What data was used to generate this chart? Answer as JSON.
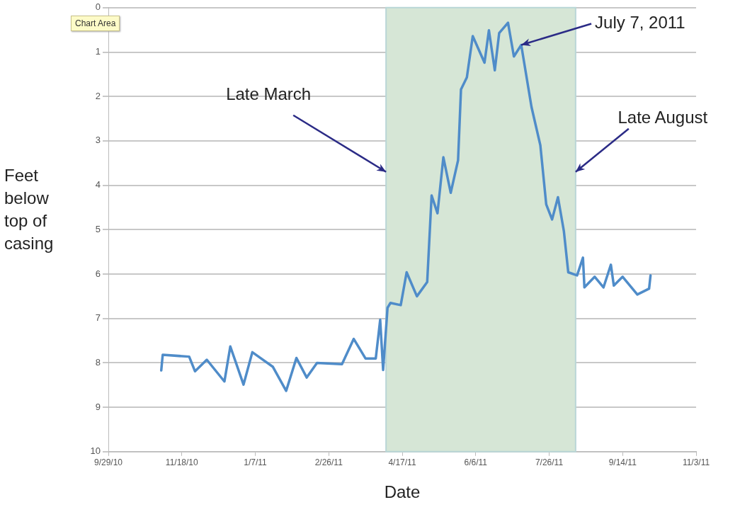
{
  "chart_data": {
    "type": "line",
    "xlabel": "Date",
    "ylabel": "Feet below top of casing",
    "xlim": [
      "2010-09-29",
      "2011-11-03"
    ],
    "xticks": [
      {
        "value": "2010-09-29",
        "label": "9/29/10"
      },
      {
        "value": "2010-11-18",
        "label": "11/18/10"
      },
      {
        "value": "2011-01-07",
        "label": "1/7/11"
      },
      {
        "value": "2011-02-26",
        "label": "2/26/11"
      },
      {
        "value": "2011-04-17",
        "label": "4/17/11"
      },
      {
        "value": "2011-06-06",
        "label": "6/6/11"
      },
      {
        "value": "2011-07-26",
        "label": "7/26/11"
      },
      {
        "value": "2011-09-14",
        "label": "9/14/11"
      },
      {
        "value": "2011-11-03",
        "label": "11/3/11"
      }
    ],
    "ylim": [
      10,
      0
    ],
    "yticks": [
      0,
      1,
      2,
      3,
      4,
      5,
      6,
      7,
      8,
      9,
      10
    ],
    "grid": "y",
    "marker": "none",
    "line_style": "solid",
    "series": [
      {
        "color": "#4f8cc9",
        "x": [
          "2010-11-04",
          "2010-11-05",
          "2010-11-23",
          "2010-11-27",
          "2010-12-05",
          "2010-12-17",
          "2010-12-21",
          "2010-12-30",
          "2011-01-05",
          "2011-01-19",
          "2011-01-28",
          "2011-02-04",
          "2011-02-11",
          "2011-02-18",
          "2011-03-07",
          "2011-03-15",
          "2011-03-23",
          "2011-03-30",
          "2011-04-02",
          "2011-04-04",
          "2011-04-07",
          "2011-04-09",
          "2011-04-16",
          "2011-04-20",
          "2011-04-27",
          "2011-05-04",
          "2011-05-07",
          "2011-05-11",
          "2011-05-15",
          "2011-05-20",
          "2011-05-25",
          "2011-05-27",
          "2011-05-31",
          "2011-06-04",
          "2011-06-12",
          "2011-06-15",
          "2011-06-19",
          "2011-06-22",
          "2011-06-28",
          "2011-07-02",
          "2011-07-07",
          "2011-07-14",
          "2011-07-20",
          "2011-07-24",
          "2011-07-28",
          "2011-08-01",
          "2011-08-05",
          "2011-08-08",
          "2011-08-14",
          "2011-08-18",
          "2011-08-19",
          "2011-08-26",
          "2011-09-01",
          "2011-09-06",
          "2011-09-08",
          "2011-09-14",
          "2011-09-24",
          "2011-10-02",
          "2011-10-03"
        ],
        "values": [
          8.17,
          7.82,
          7.86,
          8.19,
          7.93,
          8.42,
          7.63,
          8.49,
          7.76,
          8.09,
          8.63,
          7.89,
          8.33,
          8.0,
          8.03,
          7.46,
          7.9,
          7.9,
          7.03,
          8.16,
          6.76,
          6.65,
          6.7,
          5.96,
          6.5,
          6.18,
          4.23,
          4.63,
          3.37,
          4.17,
          3.44,
          1.84,
          1.57,
          0.64,
          1.24,
          0.51,
          1.41,
          0.57,
          0.34,
          1.1,
          0.84,
          2.24,
          3.1,
          4.43,
          4.77,
          4.27,
          5.03,
          5.96,
          6.03,
          5.63,
          6.3,
          6.06,
          6.3,
          5.79,
          6.26,
          6.06,
          6.46,
          6.33,
          6.03
        ]
      }
    ],
    "bands": [
      {
        "axis": "x",
        "from": "2011-04-06",
        "to": "2011-08-13",
        "color": "#d6e6d6"
      }
    ],
    "annotations": [
      "Chart Area",
      {
        "text": "Late March",
        "x": "2011-04-06",
        "y": 3.7
      },
      {
        "text": "July 7, 2011",
        "x": "2011-07-07",
        "y": 0.84
      },
      {
        "text": "Late August",
        "x": "2011-08-13",
        "y": 3.7
      }
    ]
  }
}
